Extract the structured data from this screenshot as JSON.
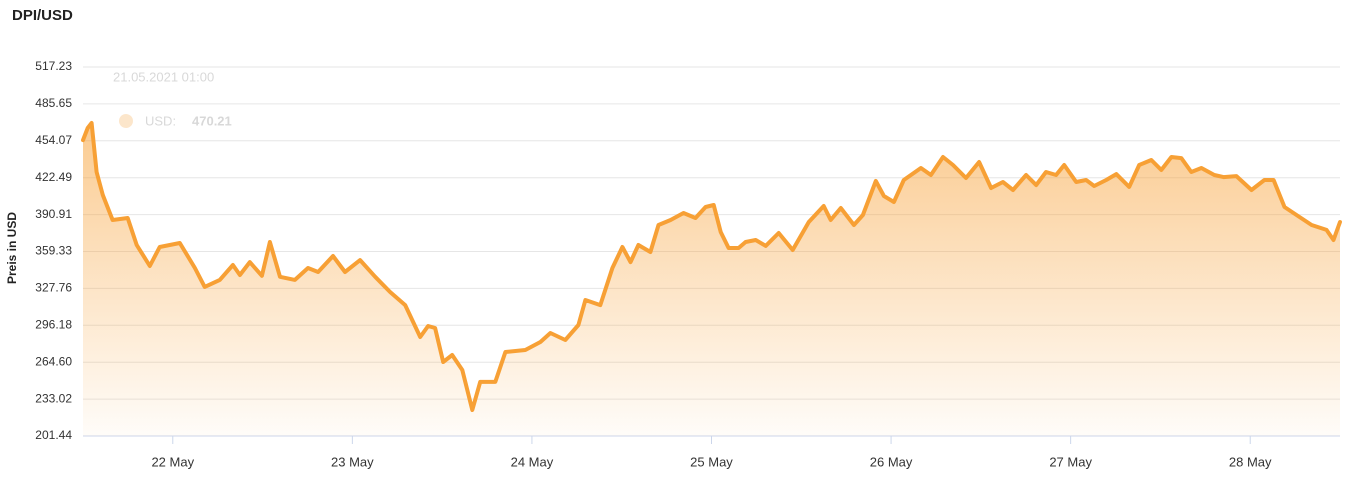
{
  "chart_data": {
    "type": "line",
    "title": "DPI/USD",
    "y_label": "Preis in USD",
    "x": [
      21.5,
      21.526,
      21.548,
      21.576,
      21.61,
      21.665,
      21.749,
      21.799,
      21.872,
      21.927,
      22.039,
      22.123,
      22.178,
      22.262,
      22.335,
      22.374,
      22.429,
      22.496,
      22.541,
      22.597,
      22.68,
      22.753,
      22.809,
      22.892,
      22.959,
      23.043,
      23.127,
      23.21,
      23.294,
      23.378,
      23.422,
      23.461,
      23.506,
      23.556,
      23.612,
      23.668,
      23.712,
      23.796,
      23.852,
      23.963,
      24.047,
      24.103,
      24.186,
      24.259,
      24.298,
      24.381,
      24.448,
      24.504,
      24.549,
      24.593,
      24.66,
      24.705,
      24.772,
      24.844,
      24.911,
      24.967,
      25.012,
      25.051,
      25.095,
      25.151,
      25.19,
      25.246,
      25.302,
      25.374,
      25.452,
      25.542,
      25.625,
      25.664,
      25.72,
      25.793,
      25.843,
      25.915,
      25.96,
      26.016,
      26.071,
      26.166,
      26.222,
      26.289,
      26.345,
      26.417,
      26.49,
      26.557,
      26.623,
      26.679,
      26.752,
      26.808,
      26.863,
      26.919,
      26.964,
      27.031,
      27.086,
      27.131,
      27.198,
      27.254,
      27.326,
      27.382,
      27.449,
      27.505,
      27.561,
      27.616,
      27.672,
      27.728,
      27.8,
      27.851,
      27.923,
      28.007,
      28.079,
      28.13,
      28.191,
      28.258,
      28.342,
      28.425,
      28.464,
      28.5
    ],
    "series": [
      {
        "name": "USD",
        "color": "#f7a035",
        "values": [
          454.7,
          465,
          469.3,
          427.4,
          407.7,
          386.3,
          388,
          364.9,
          346.9,
          363.2,
          366.6,
          345.2,
          329,
          335,
          347.8,
          339.2,
          350.3,
          338.5,
          367.5,
          337.7,
          335,
          345.2,
          341.8,
          355.5,
          341.8,
          352,
          337.7,
          324.7,
          313.5,
          286.2,
          295.6,
          293.9,
          264.8,
          270.8,
          257.9,
          223.7,
          247.7,
          247.7,
          273.3,
          275,
          281.9,
          289.6,
          283.6,
          296.4,
          317.8,
          313.5,
          345.2,
          363.2,
          350.3,
          364.9,
          358.9,
          382,
          386.3,
          392.3,
          388,
          397.4,
          399.1,
          376,
          362.3,
          362.3,
          367.5,
          369.2,
          364.1,
          375.2,
          360.6,
          384.6,
          398.3,
          386.3,
          396.6,
          382,
          390.6,
          419.7,
          406.8,
          401.7,
          420.5,
          430.8,
          424.8,
          440.2,
          433.4,
          422.2,
          435.9,
          413.7,
          418.8,
          412,
          424.8,
          416.2,
          427.4,
          424.8,
          433.4,
          418.8,
          420.5,
          415.4,
          420.5,
          425.6,
          414.6,
          433.4,
          437.6,
          429.1,
          440.2,
          439.3,
          427.4,
          430.8,
          424.8,
          423,
          423.9,
          412,
          420.5,
          420.5,
          397.4,
          390.6,
          382,
          377.8,
          369.2,
          384.6
        ]
      }
    ],
    "xlim": [
      21.5,
      28.5
    ],
    "xticks": [
      {
        "value": 22,
        "label": "22 May"
      },
      {
        "value": 23,
        "label": "23 May"
      },
      {
        "value": 24,
        "label": "24 May"
      },
      {
        "value": 25,
        "label": "25 May"
      },
      {
        "value": 26,
        "label": "26 May"
      },
      {
        "value": 27,
        "label": "27 May"
      },
      {
        "value": 28,
        "label": "28 May"
      }
    ],
    "ylim": [
      201.44,
      517.23
    ],
    "yticks": [
      201.44,
      233.02,
      {
        "value": 264.6,
        "label": "264.60"
      },
      296.18,
      327.76,
      359.33,
      390.91,
      422.49,
      454.07,
      485.65,
      517.23
    ],
    "grid": true,
    "tooltip": {
      "title": "21.05.2021 01:00",
      "series_label": "USD:",
      "value": 470.21
    }
  }
}
